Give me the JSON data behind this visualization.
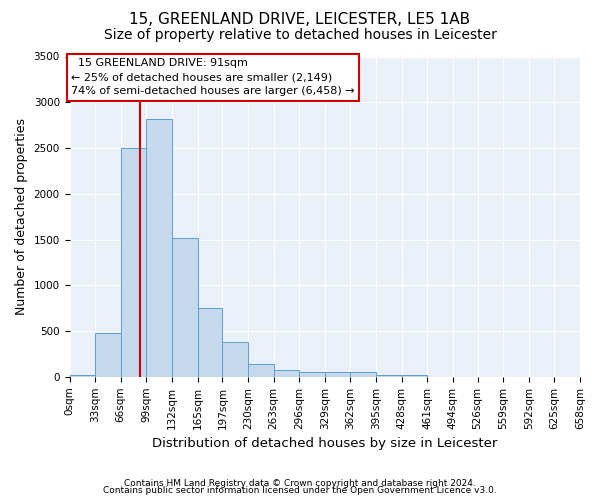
{
  "title1": "15, GREENLAND DRIVE, LEICESTER, LE5 1AB",
  "title2": "Size of property relative to detached houses in Leicester",
  "xlabel": "Distribution of detached houses by size in Leicester",
  "ylabel": "Number of detached properties",
  "footnote1": "Contains HM Land Registry data © Crown copyright and database right 2024.",
  "footnote2": "Contains public sector information licensed under the Open Government Licence v3.0.",
  "bin_edges": [
    0,
    33,
    66,
    99,
    132,
    165,
    197,
    230,
    263,
    296,
    329,
    362,
    395,
    428,
    461,
    494,
    526,
    559,
    592,
    625,
    658
  ],
  "bar_heights": [
    25,
    480,
    2500,
    2820,
    1520,
    750,
    385,
    140,
    75,
    55,
    55,
    55,
    25,
    20,
    0,
    0,
    0,
    0,
    0,
    0
  ],
  "bar_color": "#c5d8ed",
  "bar_edge_color": "#5a9fd4",
  "vline_x": 91,
  "vline_color": "#cc0000",
  "annotation_text": "  15 GREENLAND DRIVE: 91sqm\n← 25% of detached houses are smaller (2,149)\n74% of semi-detached houses are larger (6,458) →",
  "annotation_box_color": "#ffffff",
  "annotation_box_edge": "#cc0000",
  "ylim": [
    0,
    3500
  ],
  "yticks": [
    0,
    500,
    1000,
    1500,
    2000,
    2500,
    3000,
    3500
  ],
  "xtick_labels": [
    "0sqm",
    "33sqm",
    "66sqm",
    "99sqm",
    "132sqm",
    "165sqm",
    "197sqm",
    "230sqm",
    "263sqm",
    "296sqm",
    "329sqm",
    "362sqm",
    "395sqm",
    "428sqm",
    "461sqm",
    "494sqm",
    "526sqm",
    "559sqm",
    "592sqm",
    "625sqm",
    "658sqm"
  ],
  "bg_color": "#eaf0f8",
  "grid_color": "#ffffff",
  "title1_fontsize": 11,
  "title2_fontsize": 10,
  "xlabel_fontsize": 9.5,
  "ylabel_fontsize": 9,
  "tick_fontsize": 7.5,
  "annot_fontsize": 8,
  "footnote_fontsize": 6.5
}
